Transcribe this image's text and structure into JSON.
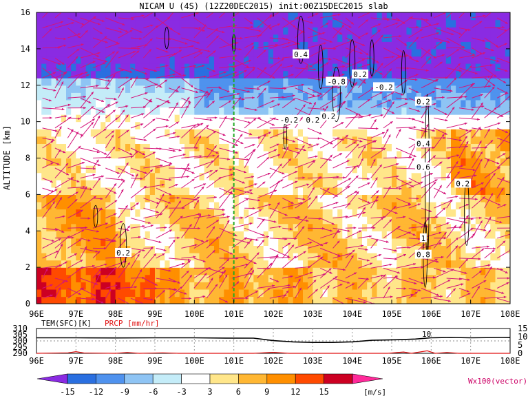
{
  "chart_data": {
    "type": "heatmap",
    "title": "NICAM U (4S) (12Z20DEC2015) init:00Z15DEC2015 slab",
    "ylabel": "ALTITUDE [km]",
    "xlim": [
      96,
      108
    ],
    "ylim": [
      0,
      16
    ],
    "x_ticks": [
      "96E",
      "97E",
      "98E",
      "99E",
      "100E",
      "101E",
      "102E",
      "103E",
      "104E",
      "105E",
      "106E",
      "107E",
      "108E"
    ],
    "y_ticks": [
      "0",
      "2",
      "4",
      "6",
      "8",
      "10",
      "12",
      "14",
      "16"
    ],
    "units": "[m/s]",
    "vector_label": "Wx100(vector)",
    "colorbar": {
      "levels": [
        "-15",
        "-12",
        "-9",
        "-6",
        "-3",
        "3",
        "6",
        "9",
        "12",
        "15"
      ],
      "colors": [
        "#8a2be2",
        "#2a6fe0",
        "#4f92ee",
        "#8ec4f4",
        "#c4ecf8",
        "#ffffff",
        "#ffe68a",
        "#ffb733",
        "#ff8f00",
        "#ff4a00",
        "#cc0022",
        "#ff2a9a"
      ]
    },
    "vertical_marker_x": 101,
    "contour_labels": [
      {
        "text": "0.4",
        "x": 102.7,
        "y": 13.7
      },
      {
        "text": "-0.8",
        "x": 103.6,
        "y": 12.2
      },
      {
        "text": "0.2",
        "x": 104.2,
        "y": 12.6
      },
      {
        "text": "-0.2",
        "x": 104.8,
        "y": 11.9
      },
      {
        "text": "0.2",
        "x": 105.8,
        "y": 11.1
      },
      {
        "text": "-0.2",
        "x": 102.4,
        "y": 10.1
      },
      {
        "text": "0.2",
        "x": 103.0,
        "y": 10.1
      },
      {
        "text": "0.2",
        "x": 103.4,
        "y": 10.3
      },
      {
        "text": "0.4",
        "x": 105.8,
        "y": 8.8
      },
      {
        "text": "0.6",
        "x": 105.8,
        "y": 7.5
      },
      {
        "text": "0.2",
        "x": 106.8,
        "y": 6.6
      },
      {
        "text": "1",
        "x": 105.8,
        "y": 3.6
      },
      {
        "text": "0.8",
        "x": 105.8,
        "y": 2.7
      },
      {
        "text": "0.2",
        "x": 98.2,
        "y": 2.8
      }
    ],
    "bottom_panel": {
      "left_label": "TEM(SFC)[K]",
      "right_label": "PRCP [mm/hr]",
      "left_ticks": [
        "310",
        "305",
        "300",
        "295",
        "290"
      ],
      "right_ticks": [
        "15",
        "10",
        "5",
        "0"
      ],
      "annotation": "10",
      "tem": [
        [
          96,
          302.5
        ],
        [
          97,
          302.5
        ],
        [
          98,
          302.4
        ],
        [
          99,
          302.5
        ],
        [
          100,
          302.5
        ],
        [
          100.8,
          302.3
        ],
        [
          101.5,
          302.2
        ],
        [
          102,
          300.2
        ],
        [
          102.5,
          299.2
        ],
        [
          103,
          298.8
        ],
        [
          103.5,
          298.8
        ],
        [
          104,
          299.2
        ],
        [
          104.5,
          300.5
        ],
        [
          105.2,
          301.0
        ],
        [
          105.6,
          301.5
        ],
        [
          106,
          302.5
        ],
        [
          106.5,
          302.8
        ],
        [
          107,
          302.5
        ],
        [
          107.8,
          302.8
        ],
        [
          108,
          302.7
        ]
      ],
      "prcp": [
        [
          96,
          0
        ],
        [
          96.8,
          0.3
        ],
        [
          97.0,
          1.0
        ],
        [
          97.2,
          0.2
        ],
        [
          98,
          0
        ],
        [
          98.3,
          0.5
        ],
        [
          98.6,
          0
        ],
        [
          99.2,
          0.3
        ],
        [
          99.6,
          0
        ],
        [
          101.5,
          0
        ],
        [
          102,
          0.6
        ],
        [
          102.4,
          0
        ],
        [
          103,
          0
        ],
        [
          104.9,
          0
        ],
        [
          105.3,
          0.8
        ],
        [
          105.5,
          0
        ],
        [
          105.9,
          1.5
        ],
        [
          106.1,
          0
        ],
        [
          106.4,
          0.5
        ],
        [
          106.7,
          0
        ],
        [
          108,
          0
        ]
      ]
    }
  }
}
